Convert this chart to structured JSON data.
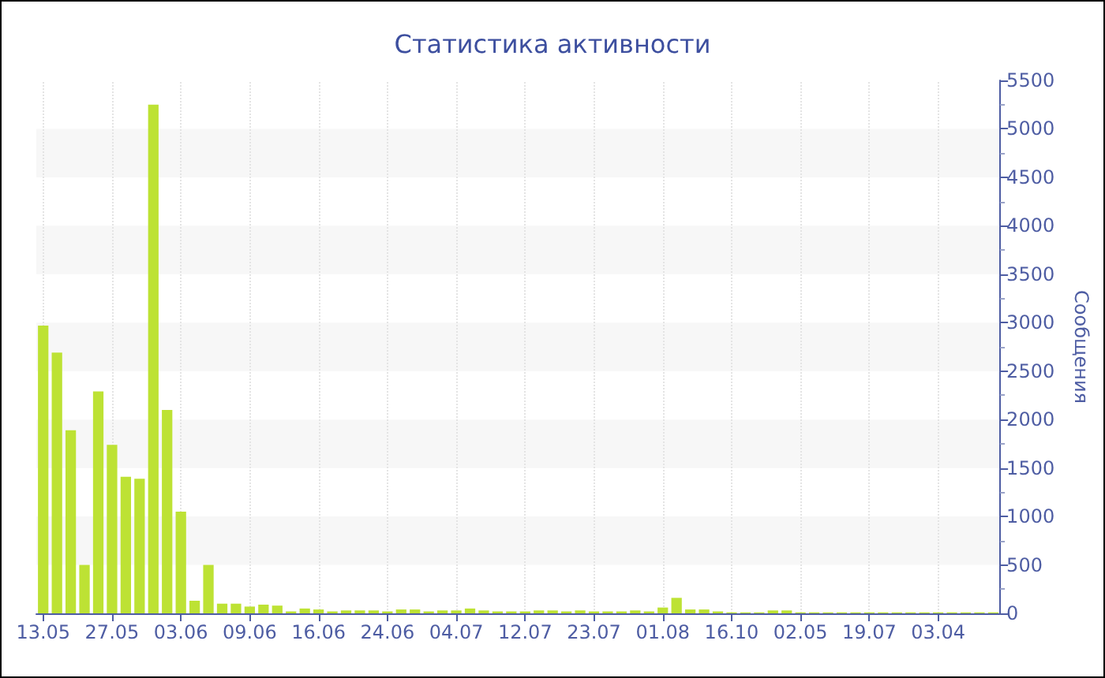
{
  "chart_data": {
    "type": "bar",
    "title": "Статистика активности",
    "ylabel": "Сообщения",
    "categories": [
      "13.05",
      null,
      null,
      null,
      null,
      "27.05",
      null,
      null,
      null,
      null,
      "03.06",
      null,
      null,
      null,
      null,
      "09.06",
      null,
      null,
      null,
      null,
      "16.06",
      null,
      null,
      null,
      null,
      "24.06",
      null,
      null,
      null,
      null,
      "04.07",
      null,
      null,
      null,
      null,
      "12.07",
      null,
      null,
      null,
      null,
      "23.07",
      null,
      null,
      null,
      null,
      "01.08",
      null,
      null,
      null,
      null,
      "16.10",
      null,
      null,
      null,
      null,
      "02.05",
      null,
      null,
      null,
      null,
      "19.07",
      null,
      null,
      null,
      null,
      "03.04",
      null,
      null,
      null,
      null
    ],
    "values": [
      2970,
      2690,
      1890,
      500,
      2290,
      1740,
      1410,
      1390,
      5250,
      2100,
      1050,
      130,
      500,
      100,
      100,
      70,
      90,
      80,
      20,
      50,
      40,
      20,
      30,
      30,
      30,
      20,
      40,
      40,
      20,
      30,
      30,
      50,
      30,
      20,
      20,
      20,
      30,
      30,
      20,
      30,
      20,
      20,
      20,
      30,
      20,
      60,
      160,
      40,
      40,
      20,
      10,
      10,
      10,
      30,
      30,
      10,
      10,
      10,
      10,
      10,
      10,
      10,
      10,
      10,
      10,
      10,
      10,
      10,
      10,
      10
    ],
    "color": "#bde234",
    "ylim": [
      0,
      5500
    ],
    "yticks": [
      0,
      500,
      1000,
      1500,
      2000,
      2500,
      3000,
      3500,
      4000,
      4500,
      5000,
      5500
    ],
    "grid": true
  }
}
